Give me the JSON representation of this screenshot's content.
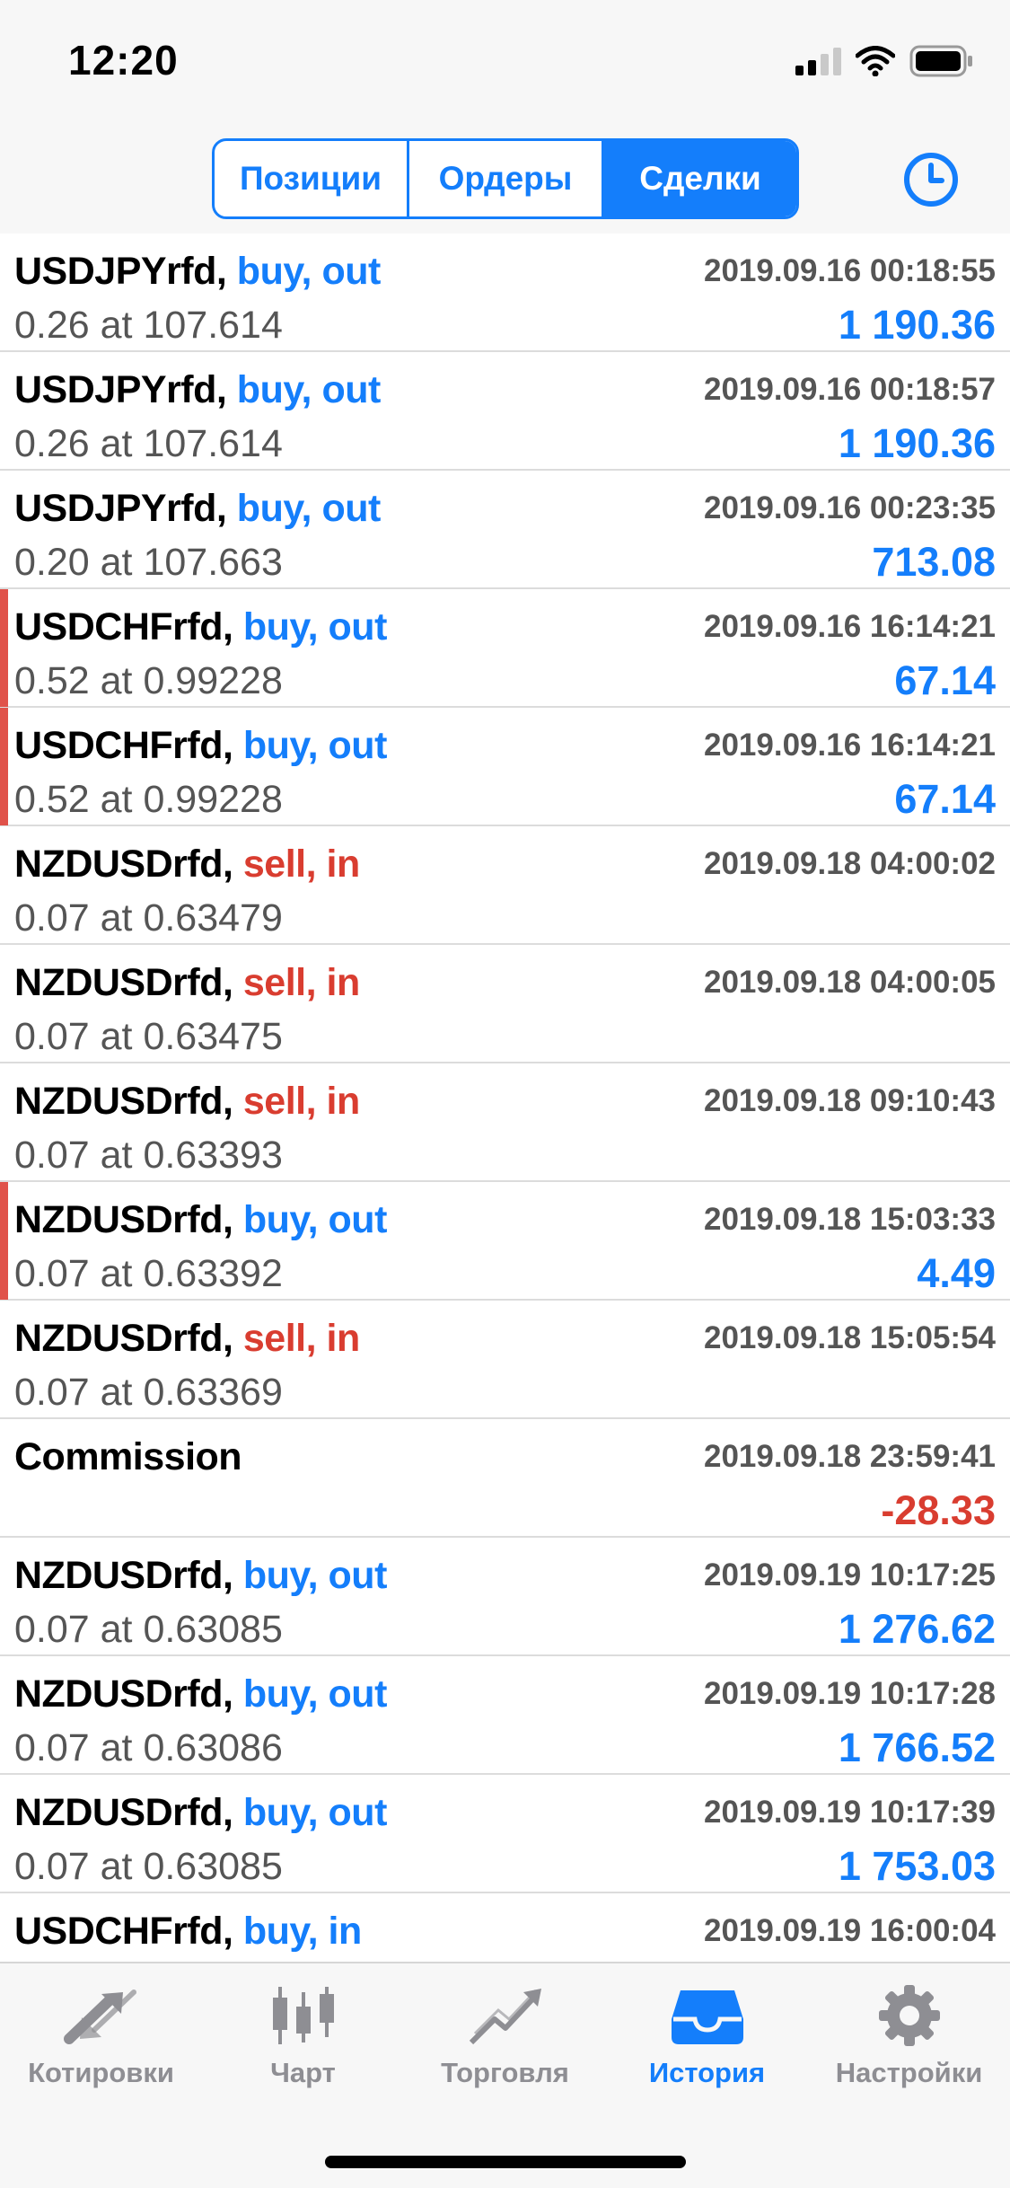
{
  "status_bar": {
    "time": "12:20"
  },
  "segments": [
    {
      "label": "Позиции",
      "active": false
    },
    {
      "label": "Ордеры",
      "active": false
    },
    {
      "label": "Сделки",
      "active": true
    }
  ],
  "deals": [
    {
      "symbol": "",
      "side_text": "",
      "side": "buy",
      "detail": "0.26 at 107.614",
      "time": "",
      "profit": "1 190.36",
      "marker": false,
      "clipped": true
    },
    {
      "symbol": "USDJPYrfd,",
      "side_text": "buy, out",
      "side": "buy",
      "detail": "0.26 at 107.614",
      "time": "2019.09.16 00:18:55",
      "profit": "1 190.36",
      "marker": false
    },
    {
      "symbol": "USDJPYrfd,",
      "side_text": "buy, out",
      "side": "buy",
      "detail": "0.26 at 107.614",
      "time": "2019.09.16 00:18:57",
      "profit": "1 190.36",
      "marker": false
    },
    {
      "symbol": "USDJPYrfd,",
      "side_text": "buy, out",
      "side": "buy",
      "detail": "0.20 at 107.663",
      "time": "2019.09.16 00:23:35",
      "profit": "713.08",
      "marker": false
    },
    {
      "symbol": "USDCHFrfd,",
      "side_text": "buy, out",
      "side": "buy",
      "detail": "0.52 at 0.99228",
      "time": "2019.09.16 16:14:21",
      "profit": "67.14",
      "marker": true
    },
    {
      "symbol": "USDCHFrfd,",
      "side_text": "buy, out",
      "side": "buy",
      "detail": "0.52 at 0.99228",
      "time": "2019.09.16 16:14:21",
      "profit": "67.14",
      "marker": true
    },
    {
      "symbol": "NZDUSDrfd,",
      "side_text": "sell, in",
      "side": "sell",
      "detail": "0.07 at 0.63479",
      "time": "2019.09.18 04:00:02",
      "profit": "",
      "marker": false
    },
    {
      "symbol": "NZDUSDrfd,",
      "side_text": "sell, in",
      "side": "sell",
      "detail": "0.07 at 0.63475",
      "time": "2019.09.18 04:00:05",
      "profit": "",
      "marker": false
    },
    {
      "symbol": "NZDUSDrfd,",
      "side_text": "sell, in",
      "side": "sell",
      "detail": "0.07 at 0.63393",
      "time": "2019.09.18 09:10:43",
      "profit": "",
      "marker": false
    },
    {
      "symbol": "NZDUSDrfd,",
      "side_text": "buy, out",
      "side": "buy",
      "detail": "0.07 at 0.63392",
      "time": "2019.09.18 15:03:33",
      "profit": "4.49",
      "marker": true
    },
    {
      "symbol": "NZDUSDrfd,",
      "side_text": "sell, in",
      "side": "sell",
      "detail": "0.07 at 0.63369",
      "time": "2019.09.18 15:05:54",
      "profit": "",
      "marker": false
    },
    {
      "symbol": "Commission",
      "side_text": "",
      "side": "",
      "detail": "",
      "time": "2019.09.18 23:59:41",
      "profit": "-28.33",
      "negative": true,
      "marker": false
    },
    {
      "symbol": "NZDUSDrfd,",
      "side_text": "buy, out",
      "side": "buy",
      "detail": "0.07 at 0.63085",
      "time": "2019.09.19 10:17:25",
      "profit": "1 276.62",
      "marker": false
    },
    {
      "symbol": "NZDUSDrfd,",
      "side_text": "buy, out",
      "side": "buy",
      "detail": "0.07 at 0.63086",
      "time": "2019.09.19 10:17:28",
      "profit": "1 766.52",
      "marker": false
    },
    {
      "symbol": "NZDUSDrfd,",
      "side_text": "buy, out",
      "side": "buy",
      "detail": "0.07 at 0.63085",
      "time": "2019.09.19 10:17:39",
      "profit": "1 753.03",
      "marker": false
    },
    {
      "symbol": "USDCHFrfd,",
      "side_text": "buy, in",
      "side": "buy",
      "detail": "",
      "time": "2019.09.19 16:00:04",
      "profit": "",
      "marker": false
    }
  ],
  "tabs": [
    {
      "label": "Котировки",
      "icon": "quotes-icon",
      "active": false
    },
    {
      "label": "Чарт",
      "icon": "chart-icon",
      "active": false
    },
    {
      "label": "Торговля",
      "icon": "trade-icon",
      "active": false
    },
    {
      "label": "История",
      "icon": "history-icon",
      "active": true
    },
    {
      "label": "Настройки",
      "icon": "gear-icon",
      "active": false
    }
  ],
  "colors": {
    "accent": "#147efb",
    "sell": "#d93d30",
    "marker": "#e0524a",
    "inactive": "#8e8e93"
  }
}
